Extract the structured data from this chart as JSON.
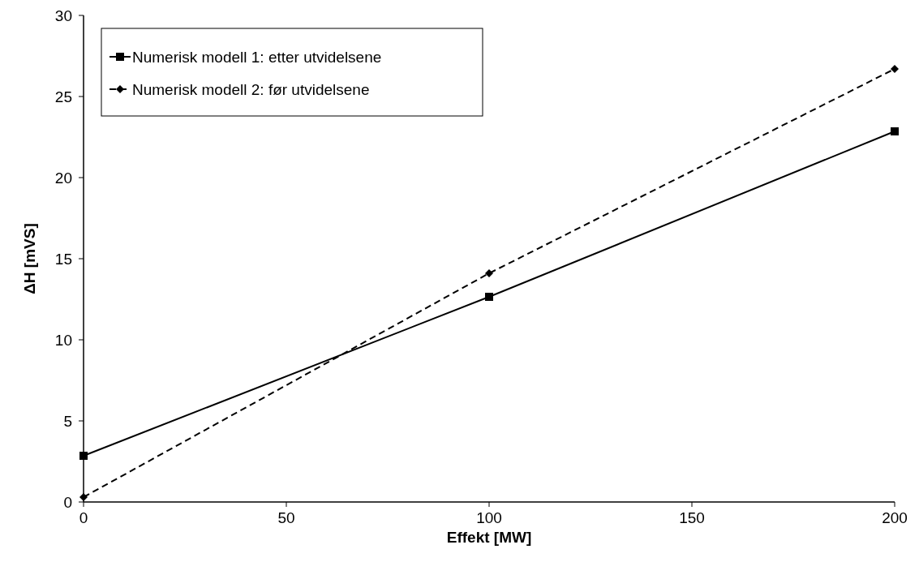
{
  "chart_data": {
    "type": "line",
    "xlabel": "Effekt [MW]",
    "ylabel": "ΔH [mVS]",
    "x": [
      0,
      100,
      200
    ],
    "series": [
      {
        "name": "Numerisk modell 1: etter utvidelsene",
        "color": "#000000",
        "values": [
          2.85,
          12.65,
          22.85
        ],
        "marker": "square",
        "line_style": "solid"
      },
      {
        "name": "Numerisk modell 2: før utvidelsene",
        "color": "#000000",
        "values": [
          0.3,
          14.1,
          26.7
        ],
        "marker": "diamond",
        "line_style": "dashed"
      }
    ],
    "xlim": [
      0,
      200
    ],
    "xticks": [
      0,
      50,
      100,
      150,
      200
    ],
    "ylim": [
      0,
      30
    ],
    "yticks": [
      0,
      5,
      10,
      15,
      20,
      25,
      30
    ],
    "grid": false,
    "legend": "top left"
  }
}
